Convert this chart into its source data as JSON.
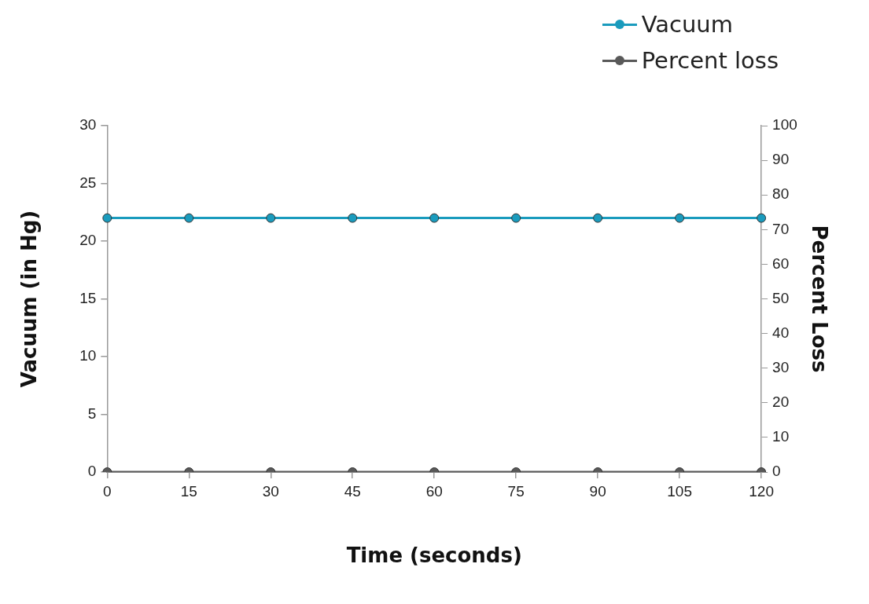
{
  "chart_data": {
    "type": "line",
    "xlabel": "Time (seconds)",
    "ylabel": "Vacuum (in Hg)",
    "y2label": "Percent Loss",
    "categories": [
      "0",
      "15",
      "30",
      "45",
      "60",
      "75",
      "90",
      "105",
      "120"
    ],
    "series": [
      {
        "name": "Vacuum",
        "color": "#1a9bbd",
        "values": [
          22,
          22,
          22,
          22,
          22,
          22,
          22,
          22,
          22
        ]
      },
      {
        "name": "Percent loss",
        "color": "#595959",
        "axis": "y2",
        "values": [
          0,
          0,
          0,
          0,
          0,
          0,
          0,
          0,
          0
        ]
      }
    ],
    "ylim": [
      0,
      30
    ],
    "yticks": [
      0,
      5,
      10,
      15,
      20,
      25,
      30
    ],
    "y2lim": [
      0,
      100
    ],
    "y2ticks": [
      0,
      10,
      20,
      30,
      40,
      50,
      60,
      70,
      80,
      90,
      100
    ],
    "legend": "top right",
    "marker": "circle",
    "line_style": "solid"
  }
}
